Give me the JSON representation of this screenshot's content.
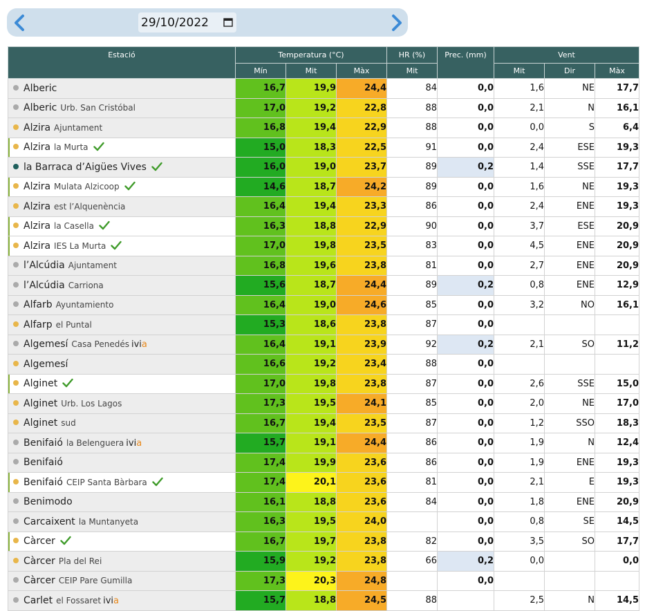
{
  "date": {
    "value": "29/10/2022"
  },
  "icons": {
    "prev": "chevron-left-icon",
    "next": "chevron-right-icon",
    "calendar": "calendar-icon",
    "check": "check-icon"
  },
  "colors": {
    "header_bg": "#376161",
    "dark_green": "#22ab22",
    "green": "#61c11e",
    "lime": "#b9e51a",
    "yellow": "#fdf31b",
    "gold": "#f7d41e",
    "orange": "#f7ab28",
    "accent_ivia": "#e8891c"
  },
  "headers": {
    "estacio": "Estació",
    "temperatura": "Temperatura (°C)",
    "hr": "HR (%)",
    "prec": "Prec. (mm)",
    "vent": "Vent",
    "t_min": "Mín",
    "t_mit": "Mit",
    "t_max": "Màx",
    "hr_mit": "Mit",
    "v_mit": "Mit",
    "v_dir": "Dir",
    "v_max": "Màx"
  },
  "rows": [
    {
      "name": "Alberic",
      "sub": "",
      "ivia": false,
      "check": false,
      "dot": "grey",
      "mark": false,
      "min": "16,7",
      "mit": "19,9",
      "max": "24,4",
      "minc": "#61c11e",
      "mitc": "#b9e51a",
      "maxc": "#f7ab28",
      "hr": "84",
      "prec": "0,0",
      "pv": false,
      "vmit": "1,6",
      "dir": "NE",
      "vmax": "17,7"
    },
    {
      "name": "Alberic",
      "sub": "Urb. San Cristóbal",
      "ivia": false,
      "check": false,
      "dot": "grey",
      "mark": false,
      "min": "17,0",
      "mit": "19,2",
      "max": "22,8",
      "minc": "#61c11e",
      "mitc": "#b9e51a",
      "maxc": "#f7d41e",
      "hr": "88",
      "prec": "0,0",
      "pv": false,
      "vmit": "2,1",
      "dir": "N",
      "vmax": "16,1"
    },
    {
      "name": "Alzira",
      "sub": "Ajuntament",
      "ivia": false,
      "check": false,
      "dot": "yellow",
      "mark": false,
      "min": "16,8",
      "mit": "19,4",
      "max": "22,9",
      "minc": "#61c11e",
      "mitc": "#b9e51a",
      "maxc": "#f7d41e",
      "hr": "88",
      "prec": "0,0",
      "pv": false,
      "vmit": "0,0",
      "dir": "S",
      "vmax": "6,4"
    },
    {
      "name": "Alzira",
      "sub": "la Murta",
      "ivia": false,
      "check": true,
      "dot": "yellow",
      "mark": true,
      "min": "15,0",
      "mit": "18,3",
      "max": "22,5",
      "minc": "#22ab22",
      "mitc": "#b9e51a",
      "maxc": "#f7d41e",
      "hr": "91",
      "prec": "0,0",
      "pv": false,
      "vmit": "2,4",
      "dir": "ESE",
      "vmax": "19,3"
    },
    {
      "name": "la Barraca d’Aigües Vives",
      "sub": "",
      "ivia": false,
      "check": true,
      "dot": "teal",
      "mark": false,
      "min": "16,0",
      "mit": "19,0",
      "max": "23,7",
      "minc": "#22ab22",
      "mitc": "#b9e51a",
      "maxc": "#f7d41e",
      "hr": "89",
      "prec": "0,2",
      "pv": true,
      "vmit": "1,4",
      "dir": "SSE",
      "vmax": "17,7"
    },
    {
      "name": "Alzira",
      "sub": "Mulata Alzicoop",
      "ivia": false,
      "check": true,
      "dot": "yellow",
      "mark": true,
      "min": "14,6",
      "mit": "18,7",
      "max": "24,2",
      "minc": "#22ab22",
      "mitc": "#b9e51a",
      "maxc": "#f7ab28",
      "hr": "89",
      "prec": "0,0",
      "pv": false,
      "vmit": "1,6",
      "dir": "NE",
      "vmax": "19,3"
    },
    {
      "name": "Alzira",
      "sub": "est l’Alquenència",
      "ivia": false,
      "check": false,
      "dot": "yellow",
      "mark": false,
      "min": "16,4",
      "mit": "19,4",
      "max": "23,3",
      "minc": "#61c11e",
      "mitc": "#b9e51a",
      "maxc": "#f7d41e",
      "hr": "86",
      "prec": "0,0",
      "pv": false,
      "vmit": "2,4",
      "dir": "ENE",
      "vmax": "19,3"
    },
    {
      "name": "Alzira",
      "sub": "la Casella",
      "ivia": false,
      "check": true,
      "dot": "yellow",
      "mark": true,
      "min": "16,3",
      "mit": "18,8",
      "max": "22,9",
      "minc": "#61c11e",
      "mitc": "#b9e51a",
      "maxc": "#f7d41e",
      "hr": "90",
      "prec": "0,0",
      "pv": false,
      "vmit": "3,7",
      "dir": "ESE",
      "vmax": "20,9"
    },
    {
      "name": "Alzira",
      "sub": "IES La Murta",
      "ivia": false,
      "check": true,
      "dot": "yellow",
      "mark": true,
      "min": "17,0",
      "mit": "19,8",
      "max": "23,5",
      "minc": "#61c11e",
      "mitc": "#b9e51a",
      "maxc": "#f7d41e",
      "hr": "83",
      "prec": "0,0",
      "pv": false,
      "vmit": "4,5",
      "dir": "ENE",
      "vmax": "20,9"
    },
    {
      "name": "l’Alcúdia",
      "sub": "Ajuntament",
      "ivia": false,
      "check": false,
      "dot": "grey",
      "mark": false,
      "min": "16,8",
      "mit": "19,6",
      "max": "23,8",
      "minc": "#61c11e",
      "mitc": "#b9e51a",
      "maxc": "#f7d41e",
      "hr": "81",
      "prec": "0,0",
      "pv": false,
      "vmit": "2,7",
      "dir": "ENE",
      "vmax": "20,9"
    },
    {
      "name": "l’Alcúdia",
      "sub": "Carriona",
      "ivia": false,
      "check": false,
      "dot": "grey",
      "mark": false,
      "min": "15,6",
      "mit": "18,7",
      "max": "24,4",
      "minc": "#22ab22",
      "mitc": "#b9e51a",
      "maxc": "#f7ab28",
      "hr": "89",
      "prec": "0,2",
      "pv": true,
      "vmit": "0,8",
      "dir": "ENE",
      "vmax": "12,9"
    },
    {
      "name": "Alfarb",
      "sub": "Ayuntamiento",
      "ivia": false,
      "check": false,
      "dot": "grey",
      "mark": false,
      "min": "16,4",
      "mit": "19,0",
      "max": "24,6",
      "minc": "#61c11e",
      "mitc": "#b9e51a",
      "maxc": "#f7ab28",
      "hr": "85",
      "prec": "0,0",
      "pv": false,
      "vmit": "3,2",
      "dir": "NO",
      "vmax": "16,1"
    },
    {
      "name": "Alfarp",
      "sub": "el Puntal",
      "ivia": false,
      "check": false,
      "dot": "yellow",
      "mark": false,
      "min": "15,3",
      "mit": "18,6",
      "max": "23,8",
      "minc": "#22ab22",
      "mitc": "#b9e51a",
      "maxc": "#f7d41e",
      "hr": "87",
      "prec": "0,0",
      "pv": false,
      "vmit": "",
      "dir": "",
      "vmax": ""
    },
    {
      "name": "Algemesí",
      "sub": "Casa Penedés",
      "ivia": true,
      "check": false,
      "dot": "grey",
      "mark": false,
      "min": "16,4",
      "mit": "19,1",
      "max": "23,9",
      "minc": "#61c11e",
      "mitc": "#b9e51a",
      "maxc": "#f7d41e",
      "hr": "92",
      "prec": "0,2",
      "pv": true,
      "vmit": "2,1",
      "dir": "SO",
      "vmax": "11,2"
    },
    {
      "name": "Algemesí",
      "sub": "",
      "ivia": false,
      "check": false,
      "dot": "yellow",
      "mark": false,
      "min": "16,6",
      "mit": "19,2",
      "max": "23,4",
      "minc": "#61c11e",
      "mitc": "#b9e51a",
      "maxc": "#f7d41e",
      "hr": "88",
      "prec": "0,0",
      "pv": false,
      "vmit": "",
      "dir": "",
      "vmax": ""
    },
    {
      "name": "Alginet",
      "sub": "",
      "ivia": false,
      "check": true,
      "dot": "yellow",
      "mark": true,
      "min": "17,0",
      "mit": "19,8",
      "max": "23,8",
      "minc": "#61c11e",
      "mitc": "#b9e51a",
      "maxc": "#f7d41e",
      "hr": "87",
      "prec": "0,0",
      "pv": false,
      "vmit": "2,6",
      "dir": "SSE",
      "vmax": "15,0"
    },
    {
      "name": "Alginet",
      "sub": "Urb. Los Lagos",
      "ivia": false,
      "check": false,
      "dot": "yellow",
      "mark": false,
      "min": "17,3",
      "mit": "19,5",
      "max": "24,1",
      "minc": "#61c11e",
      "mitc": "#b9e51a",
      "maxc": "#f7ab28",
      "hr": "85",
      "prec": "0,0",
      "pv": false,
      "vmit": "2,0",
      "dir": "NE",
      "vmax": "17,0"
    },
    {
      "name": "Alginet",
      "sub": "sud",
      "ivia": false,
      "check": false,
      "dot": "yellow",
      "mark": false,
      "min": "16,7",
      "mit": "19,4",
      "max": "23,5",
      "minc": "#61c11e",
      "mitc": "#b9e51a",
      "maxc": "#f7d41e",
      "hr": "87",
      "prec": "0,0",
      "pv": false,
      "vmit": "1,2",
      "dir": "SSO",
      "vmax": "18,3"
    },
    {
      "name": "Benifaió",
      "sub": "la Belenguera",
      "ivia": true,
      "check": false,
      "dot": "grey",
      "mark": false,
      "min": "15,7",
      "mit": "19,1",
      "max": "24,4",
      "minc": "#22ab22",
      "mitc": "#b9e51a",
      "maxc": "#f7ab28",
      "hr": "86",
      "prec": "0,0",
      "pv": false,
      "vmit": "1,9",
      "dir": "N",
      "vmax": "12,4"
    },
    {
      "name": "Benifaió",
      "sub": "",
      "ivia": false,
      "check": false,
      "dot": "grey",
      "mark": false,
      "min": "17,4",
      "mit": "19,9",
      "max": "23,6",
      "minc": "#61c11e",
      "mitc": "#b9e51a",
      "maxc": "#f7d41e",
      "hr": "86",
      "prec": "0,0",
      "pv": false,
      "vmit": "1,9",
      "dir": "ENE",
      "vmax": "19,3"
    },
    {
      "name": "Benifaió",
      "sub": "CEIP Santa Bàrbara",
      "ivia": false,
      "check": true,
      "dot": "yellow",
      "mark": true,
      "min": "17,4",
      "mit": "20,1",
      "max": "23,6",
      "minc": "#61c11e",
      "mitc": "#fdf31b",
      "maxc": "#f7d41e",
      "hr": "81",
      "prec": "0,0",
      "pv": false,
      "vmit": "2,1",
      "dir": "E",
      "vmax": "19,3"
    },
    {
      "name": "Benimodo",
      "sub": "",
      "ivia": false,
      "check": false,
      "dot": "grey",
      "mark": false,
      "min": "16,1",
      "mit": "18,8",
      "max": "23,6",
      "minc": "#61c11e",
      "mitc": "#b9e51a",
      "maxc": "#f7d41e",
      "hr": "84",
      "prec": "0,0",
      "pv": false,
      "vmit": "1,8",
      "dir": "ENE",
      "vmax": "20,9"
    },
    {
      "name": "Carcaixent",
      "sub": "la Muntanyeta",
      "ivia": false,
      "check": false,
      "dot": "grey",
      "mark": false,
      "min": "16,3",
      "mit": "19,5",
      "max": "24,0",
      "minc": "#61c11e",
      "mitc": "#b9e51a",
      "maxc": "#f7d41e",
      "hr": "",
      "prec": "0,0",
      "pv": false,
      "vmit": "0,8",
      "dir": "SE",
      "vmax": "14,5"
    },
    {
      "name": "Càrcer",
      "sub": "",
      "ivia": false,
      "check": true,
      "dot": "yellow",
      "mark": true,
      "min": "16,7",
      "mit": "19,7",
      "max": "23,8",
      "minc": "#61c11e",
      "mitc": "#b9e51a",
      "maxc": "#f7d41e",
      "hr": "82",
      "prec": "0,0",
      "pv": false,
      "vmit": "3,5",
      "dir": "SO",
      "vmax": "17,7"
    },
    {
      "name": "Càrcer",
      "sub": "Pla del Rei",
      "ivia": false,
      "check": false,
      "dot": "yellow",
      "mark": false,
      "min": "15,9",
      "mit": "19,2",
      "max": "23,8",
      "minc": "#22ab22",
      "mitc": "#b9e51a",
      "maxc": "#f7d41e",
      "hr": "66",
      "prec": "0,2",
      "pv": true,
      "vmit": "0,0",
      "dir": "",
      "vmax": "0,0"
    },
    {
      "name": "Càrcer",
      "sub": "CEIP Pare Gumilla",
      "ivia": false,
      "check": false,
      "dot": "grey",
      "mark": false,
      "min": "17,3",
      "mit": "20,3",
      "max": "24,8",
      "minc": "#61c11e",
      "mitc": "#fdf31b",
      "maxc": "#f7ab28",
      "hr": "",
      "prec": "0,0",
      "pv": false,
      "vmit": "",
      "dir": "",
      "vmax": ""
    },
    {
      "name": "Carlet",
      "sub": "el Fossaret",
      "ivia": true,
      "check": false,
      "dot": "grey",
      "mark": false,
      "min": "15,7",
      "mit": "18,8",
      "max": "24,5",
      "minc": "#22ab22",
      "mitc": "#b9e51a",
      "maxc": "#f7ab28",
      "hr": "88",
      "prec": "",
      "pv": false,
      "vmit": "2,5",
      "dir": "N",
      "vmax": "14,5"
    }
  ]
}
